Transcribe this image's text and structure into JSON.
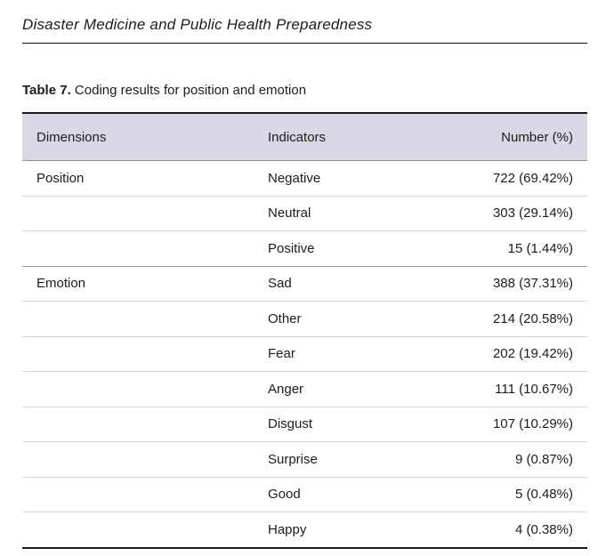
{
  "journal": {
    "title": "Disaster Medicine and Public Health Preparedness"
  },
  "caption": {
    "label": "Table 7.",
    "text": "Coding results for position and emotion"
  },
  "table": {
    "columns": [
      "Dimensions",
      "Indicators",
      "Number (%)"
    ],
    "groups": [
      {
        "dimension": "Position",
        "rows": [
          {
            "indicator": "Negative",
            "number": "722 (69.42%)"
          },
          {
            "indicator": "Neutral",
            "number": "303 (29.14%)"
          },
          {
            "indicator": "Positive",
            "number": "15 (1.44%)"
          }
        ]
      },
      {
        "dimension": "Emotion",
        "rows": [
          {
            "indicator": "Sad",
            "number": "388 (37.31%)"
          },
          {
            "indicator": "Other",
            "number": "214 (20.58%)"
          },
          {
            "indicator": "Fear",
            "number": "202 (19.42%)"
          },
          {
            "indicator": "Anger",
            "number": "111 (10.67%)"
          },
          {
            "indicator": "Disgust",
            "number": "107 (10.29%)"
          },
          {
            "indicator": "Surprise",
            "number": "9 (0.87%)"
          },
          {
            "indicator": "Good",
            "number": "5 (0.48%)"
          },
          {
            "indicator": "Happy",
            "number": "4 (0.38%)"
          }
        ]
      }
    ]
  },
  "colors": {
    "header_bg": "#d9d8e5",
    "border_dark": "#1a1a1a",
    "row_line": "#d4d2de",
    "group_line": "#9a98aa"
  }
}
